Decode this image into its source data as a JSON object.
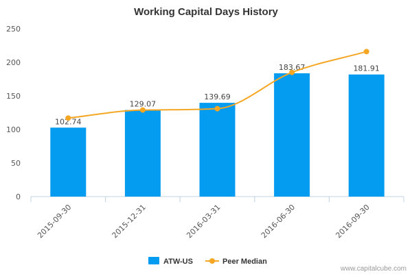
{
  "chart_data": {
    "type": "bar",
    "title": "Working Capital Days History",
    "categories": [
      "2015-09-30",
      "2015-12-31",
      "2016-03-31",
      "2016-06-30",
      "2016-09-30"
    ],
    "series": [
      {
        "name": "ATW-US",
        "type": "bar",
        "color": "#049cf0",
        "values": [
          102.74,
          129.07,
          139.69,
          183.67,
          181.91
        ],
        "labels": [
          "102.74",
          "129.07",
          "139.69",
          "183.67",
          "181.91"
        ]
      },
      {
        "name": "Peer Median",
        "type": "line",
        "color": "#f5a623",
        "values": [
          117,
          129,
          131,
          185,
          216
        ]
      }
    ],
    "ylim": [
      0,
      250
    ],
    "yticks": [
      "0",
      "50",
      "100",
      "150",
      "200",
      "250"
    ],
    "xlabel": "",
    "ylabel": "",
    "grid": false,
    "legend": "bottom-center"
  },
  "credit": "www.capitalcube.com"
}
